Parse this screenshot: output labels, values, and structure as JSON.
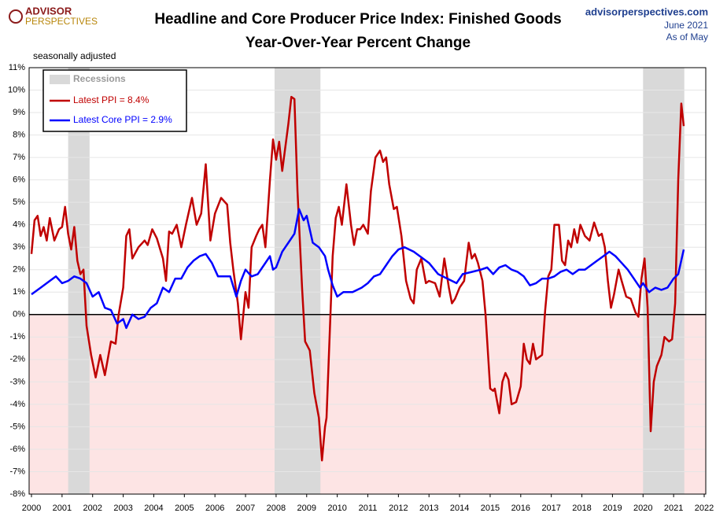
{
  "chart_data": {
    "type": "line",
    "title": "Headline and Core Producer Price Index: Finished Goods",
    "subtitle": "Year-Over-Year Percent Change",
    "note": "seasonally adjusted",
    "source": "advisorperspectives.com",
    "date": "June 2021",
    "as_of": "As of May",
    "logo": [
      "ADVISOR",
      "PERSPECTIVES"
    ],
    "xlim": [
      2000,
      2022
    ],
    "xticks": [
      2000,
      2001,
      2002,
      2003,
      2004,
      2005,
      2006,
      2007,
      2008,
      2009,
      2010,
      2011,
      2012,
      2013,
      2014,
      2015,
      2016,
      2017,
      2018,
      2019,
      2020,
      2021,
      2022
    ],
    "ylim": [
      -8,
      11
    ],
    "yticks": [
      {
        "value": -8,
        "label": "-8%"
      },
      {
        "value": -7,
        "label": "-7%"
      },
      {
        "value": -6,
        "label": "-6%"
      },
      {
        "value": -5,
        "label": "-5%"
      },
      {
        "value": -4,
        "label": "-4%"
      },
      {
        "value": -3,
        "label": "-3%"
      },
      {
        "value": -2,
        "label": "-2%"
      },
      {
        "value": -1,
        "label": "-1%"
      },
      {
        "value": 0,
        "label": "0%"
      },
      {
        "value": 1,
        "label": "1%"
      },
      {
        "value": 2,
        "label": "2%"
      },
      {
        "value": 3,
        "label": "3%"
      },
      {
        "value": 4,
        "label": "4%"
      },
      {
        "value": 5,
        "label": "5%"
      },
      {
        "value": 6,
        "label": "6%"
      },
      {
        "value": 7,
        "label": "7%"
      },
      {
        "value": 8,
        "label": "8%"
      },
      {
        "value": 9,
        "label": "9%"
      },
      {
        "value": 10,
        "label": "10%"
      },
      {
        "value": 11,
        "label": "11%"
      }
    ],
    "recessions_label": "Recessions",
    "recession_color": "#d9d9d9",
    "negative_color": "#fde4e4",
    "recessions": [
      [
        2001.2,
        2001.9
      ],
      [
        2007.95,
        2009.45
      ],
      [
        2020.0,
        2021.35
      ]
    ],
    "series": [
      {
        "name": "Latest PPI = 8.4%",
        "color": "#c00000",
        "x": [
          2000.0,
          2000.1,
          2000.2,
          2000.3,
          2000.4,
          2000.5,
          2000.6,
          2000.75,
          2000.9,
          2001.0,
          2001.1,
          2001.2,
          2001.3,
          2001.4,
          2001.5,
          2001.6,
          2001.7,
          2001.8,
          2001.95,
          2002.1,
          2002.25,
          2002.4,
          2002.6,
          2002.75,
          2002.85,
          2003.0,
          2003.1,
          2003.2,
          2003.3,
          2003.5,
          2003.7,
          2003.8,
          2003.95,
          2004.1,
          2004.3,
          2004.4,
          2004.5,
          2004.6,
          2004.75,
          2004.9,
          2005.05,
          2005.25,
          2005.4,
          2005.55,
          2005.7,
          2005.85,
          2006.0,
          2006.2,
          2006.4,
          2006.5,
          2006.6,
          2006.75,
          2006.85,
          2007.0,
          2007.1,
          2007.2,
          2007.35,
          2007.45,
          2007.55,
          2007.65,
          2007.8,
          2007.9,
          2008.0,
          2008.1,
          2008.2,
          2008.4,
          2008.5,
          2008.6,
          2008.7,
          2008.85,
          2008.95,
          2009.1,
          2009.25,
          2009.4,
          2009.5,
          2009.6,
          2009.65,
          2009.75,
          2009.85,
          2009.95,
          2010.05,
          2010.15,
          2010.3,
          2010.45,
          2010.55,
          2010.65,
          2010.75,
          2010.85,
          2011.0,
          2011.1,
          2011.25,
          2011.4,
          2011.5,
          2011.6,
          2011.7,
          2011.85,
          2011.95,
          2012.1,
          2012.25,
          2012.4,
          2012.5,
          2012.6,
          2012.75,
          2012.9,
          2013.0,
          2013.2,
          2013.35,
          2013.5,
          2013.65,
          2013.75,
          2013.85,
          2014.0,
          2014.15,
          2014.3,
          2014.4,
          2014.5,
          2014.6,
          2014.75,
          2014.85,
          2015.0,
          2015.1,
          2015.15,
          2015.3,
          2015.4,
          2015.5,
          2015.6,
          2015.7,
          2015.85,
          2016.0,
          2016.1,
          2016.2,
          2016.3,
          2016.4,
          2016.5,
          2016.7,
          2016.8,
          2016.9,
          2017.0,
          2017.1,
          2017.25,
          2017.35,
          2017.45,
          2017.55,
          2017.65,
          2017.75,
          2017.85,
          2017.95,
          2018.1,
          2018.25,
          2018.4,
          2018.55,
          2018.65,
          2018.75,
          2018.85,
          2018.95,
          2019.05,
          2019.2,
          2019.3,
          2019.45,
          2019.6,
          2019.75,
          2019.85,
          2019.95,
          2020.05,
          2020.15,
          2020.25,
          2020.35,
          2020.45,
          2020.6,
          2020.7,
          2020.85,
          2020.95,
          2021.05,
          2021.15,
          2021.25,
          2021.33
        ],
        "values": [
          2.7,
          4.2,
          4.4,
          3.5,
          3.9,
          3.3,
          4.3,
          3.3,
          3.8,
          3.9,
          4.8,
          3.6,
          2.9,
          3.9,
          2.4,
          1.8,
          2.0,
          -0.5,
          -1.8,
          -2.8,
          -1.8,
          -2.7,
          -1.2,
          -1.3,
          0.0,
          1.2,
          3.5,
          3.8,
          2.5,
          3.0,
          3.3,
          3.1,
          3.8,
          3.4,
          2.5,
          1.5,
          3.7,
          3.6,
          4.0,
          3.0,
          4.0,
          5.2,
          4.0,
          4.5,
          6.7,
          3.3,
          4.5,
          5.2,
          4.9,
          3.2,
          2.0,
          0.5,
          -1.1,
          1.0,
          0.3,
          3.0,
          3.5,
          3.8,
          4.0,
          3.0,
          6.0,
          7.8,
          6.9,
          7.7,
          6.4,
          8.5,
          9.7,
          9.6,
          5.5,
          1.2,
          -1.2,
          -1.6,
          -3.5,
          -4.6,
          -6.5,
          -5.0,
          -4.6,
          -1.0,
          2.6,
          4.3,
          4.8,
          4.0,
          5.8,
          4.0,
          3.1,
          3.8,
          3.8,
          4.0,
          3.6,
          5.5,
          7.0,
          7.3,
          6.8,
          7.0,
          5.8,
          4.7,
          4.8,
          3.5,
          1.5,
          0.7,
          0.5,
          2.0,
          2.5,
          1.4,
          1.5,
          1.4,
          0.8,
          2.5,
          1.2,
          0.5,
          0.7,
          1.2,
          1.5,
          3.2,
          2.5,
          2.7,
          2.3,
          1.5,
          0.0,
          -3.3,
          -3.4,
          -3.3,
          -4.4,
          -3.0,
          -2.6,
          -2.9,
          -4.0,
          -3.9,
          -3.2,
          -1.3,
          -2.0,
          -2.2,
          -1.3,
          -2.0,
          -1.8,
          0.2,
          1.7,
          2.0,
          4.0,
          4.0,
          2.4,
          2.2,
          3.3,
          3.0,
          3.8,
          3.2,
          4.0,
          3.5,
          3.3,
          4.1,
          3.5,
          3.6,
          3.0,
          1.5,
          0.3,
          0.9,
          2.0,
          1.5,
          0.8,
          0.7,
          0.1,
          -0.1,
          1.6,
          2.5,
          0.3,
          -5.2,
          -3.0,
          -2.3,
          -1.8,
          -1.0,
          -1.2,
          -1.1,
          0.5,
          6.0,
          9.4,
          8.4
        ]
      },
      {
        "name": "Latest Core PPI = 2.9%",
        "color": "#0000ff",
        "x": [
          2000.0,
          2000.3,
          2000.6,
          2000.8,
          2001.0,
          2001.2,
          2001.4,
          2001.6,
          2001.8,
          2002.0,
          2002.2,
          2002.4,
          2002.6,
          2002.8,
          2003.0,
          2003.1,
          2003.3,
          2003.5,
          2003.7,
          2003.9,
          2004.1,
          2004.3,
          2004.5,
          2004.7,
          2004.9,
          2005.1,
          2005.3,
          2005.5,
          2005.7,
          2005.9,
          2006.1,
          2006.3,
          2006.5,
          2006.7,
          2006.85,
          2007.0,
          2007.2,
          2007.4,
          2007.6,
          2007.8,
          2007.9,
          2008.0,
          2008.2,
          2008.4,
          2008.6,
          2008.75,
          2008.9,
          2009.0,
          2009.2,
          2009.4,
          2009.6,
          2009.7,
          2009.85,
          2010.0,
          2010.2,
          2010.5,
          2010.8,
          2011.0,
          2011.2,
          2011.4,
          2011.6,
          2011.8,
          2012.0,
          2012.2,
          2012.5,
          2012.8,
          2013.0,
          2013.3,
          2013.6,
          2013.9,
          2014.1,
          2014.4,
          2014.7,
          2014.9,
          2015.1,
          2015.3,
          2015.5,
          2015.7,
          2015.9,
          2016.1,
          2016.3,
          2016.5,
          2016.7,
          2016.9,
          2017.1,
          2017.3,
          2017.5,
          2017.7,
          2017.9,
          2018.1,
          2018.3,
          2018.5,
          2018.7,
          2018.9,
          2019.1,
          2019.3,
          2019.5,
          2019.7,
          2019.9,
          2020.0,
          2020.2,
          2020.4,
          2020.6,
          2020.8,
          2021.0,
          2021.15,
          2021.33
        ],
        "values": [
          0.9,
          1.2,
          1.5,
          1.7,
          1.4,
          1.5,
          1.7,
          1.6,
          1.4,
          0.8,
          1.0,
          0.3,
          0.2,
          -0.4,
          -0.2,
          -0.6,
          0.0,
          -0.2,
          -0.1,
          0.3,
          0.5,
          1.2,
          1.0,
          1.6,
          1.6,
          2.1,
          2.4,
          2.6,
          2.7,
          2.3,
          1.7,
          1.7,
          1.7,
          0.8,
          1.5,
          2.0,
          1.7,
          1.8,
          2.2,
          2.6,
          2.0,
          2.1,
          2.8,
          3.2,
          3.6,
          4.7,
          4.2,
          4.4,
          3.2,
          3.0,
          2.6,
          2.0,
          1.3,
          0.8,
          1.0,
          1.0,
          1.2,
          1.4,
          1.7,
          1.8,
          2.2,
          2.6,
          2.9,
          3.0,
          2.8,
          2.5,
          2.3,
          1.8,
          1.6,
          1.4,
          1.8,
          1.9,
          2.0,
          2.1,
          1.8,
          2.1,
          2.2,
          2.0,
          1.9,
          1.7,
          1.3,
          1.4,
          1.6,
          1.6,
          1.7,
          1.9,
          2.0,
          1.8,
          2.0,
          2.0,
          2.2,
          2.4,
          2.6,
          2.8,
          2.6,
          2.3,
          2.0,
          1.6,
          1.2,
          1.4,
          1.0,
          1.2,
          1.1,
          1.2,
          1.6,
          1.8,
          2.9
        ]
      }
    ]
  }
}
